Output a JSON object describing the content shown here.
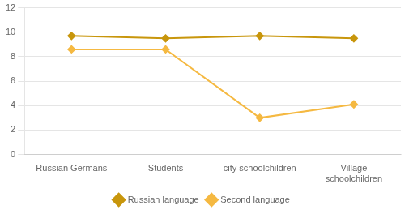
{
  "chart_data": {
    "type": "line",
    "categories": [
      "Russian Germans",
      "Students",
      "city schoolchildren",
      "Village\nschoolchildren"
    ],
    "series": [
      {
        "name": "Russian language",
        "color": "#c8960c",
        "values": [
          9.7,
          9.5,
          9.7,
          9.5
        ],
        "marker": "diamond"
      },
      {
        "name": "Second language",
        "color": "#f5b942",
        "values": [
          8.6,
          8.6,
          3.0,
          4.1
        ],
        "marker": "diamond"
      }
    ],
    "ylim": [
      0,
      12
    ],
    "yticks": [
      0,
      2,
      4,
      6,
      8,
      10,
      12
    ],
    "grid": true,
    "legend": "bottom"
  }
}
